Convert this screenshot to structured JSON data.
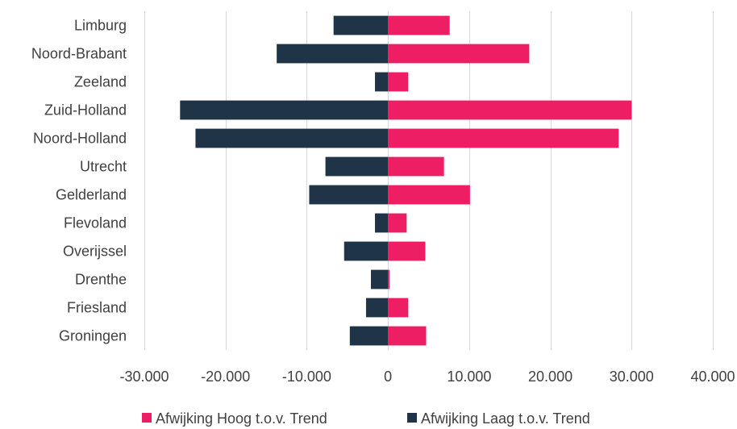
{
  "chart_data": {
    "type": "bar",
    "orientation": "horizontal",
    "stacked": "diverging",
    "categories": [
      "Limburg",
      "Noord-Brabant",
      "Zeeland",
      "Zuid-Holland",
      "Noord-Holland",
      "Utrecht",
      "Gelderland",
      "Flevoland",
      "Overijssel",
      "Drenthe",
      "Friesland",
      "Groningen"
    ],
    "series": [
      {
        "name": "Afwijking Hoog t.o.v. Trend",
        "color": "#ED1E63",
        "values": [
          7600,
          17400,
          2500,
          30000,
          28400,
          6900,
          10100,
          2300,
          4600,
          200,
          2500,
          4700
        ]
      },
      {
        "name": "Afwijking Laag t.o.v. Trend",
        "color": "#1F3446",
        "values": [
          -6700,
          -13700,
          -1600,
          -25600,
          -23700,
          -7700,
          -9700,
          -1600,
          -5400,
          -2100,
          -2700,
          -4700
        ]
      }
    ],
    "xlim": [
      -30000,
      40000
    ],
    "x_ticks": [
      -30000,
      -20000,
      -10000,
      0,
      10000,
      20000,
      30000,
      40000
    ],
    "x_tick_labels": [
      "-30.000",
      "-20.000",
      "-10.000",
      "0",
      "10.000",
      "20.000",
      "30.000",
      "40.000"
    ],
    "grid": "vertical",
    "grid_color": "#D9D9D9",
    "legend_position": "bottom",
    "title": "",
    "xlabel": "",
    "ylabel": ""
  }
}
